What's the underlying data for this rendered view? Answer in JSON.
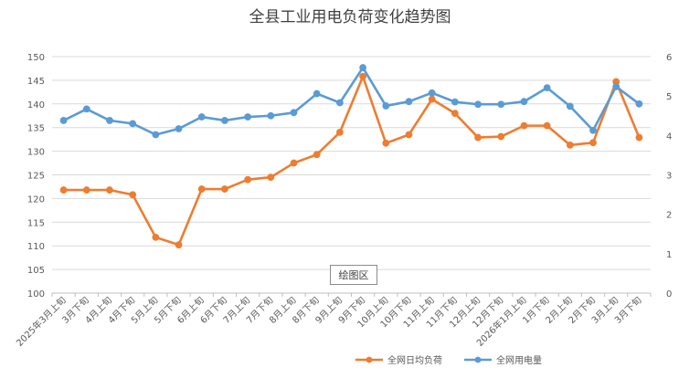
{
  "plot_area_label": "绘图区",
  "chart_data": {
    "type": "line",
    "title": "全县工业用电负荷变化趋势图",
    "categories": [
      "2025年3月上旬",
      "3月下旬",
      "4月上旬",
      "4月下旬",
      "5月上旬",
      "5月下旬",
      "6月上旬",
      "6月下旬",
      "7月上旬",
      "7月下旬",
      "8月上旬",
      "8月下旬",
      "9月上旬",
      "9月下旬",
      "10月上旬",
      "10月下旬",
      "11月上旬",
      "11月下旬",
      "12月上旬",
      "12月下旬",
      "2026年1月上旬",
      "1月下旬",
      "2月上旬",
      "2月下旬",
      "3月上旬",
      "3月下旬"
    ],
    "y_left": {
      "min": 100,
      "max": 150,
      "step": 5,
      "ticks": [
        "100",
        "105",
        "110",
        "115",
        "120",
        "125",
        "130",
        "135",
        "140",
        "145",
        "150"
      ]
    },
    "y_right": {
      "min": 0,
      "max": 6,
      "step": 1,
      "ticks": [
        "0",
        "1",
        "2",
        "3",
        "4",
        "5",
        "6"
      ]
    },
    "grid": true,
    "legend_position": "bottom-right",
    "series": [
      {
        "name": "全网日均负荷",
        "axis": "left",
        "color": "#ED7D31",
        "values": [
          121.8,
          121.8,
          121.8,
          120.8,
          111.8,
          110.2,
          122.0,
          122.0,
          124.0,
          124.5,
          127.5,
          129.3,
          134.0,
          145.8,
          131.7,
          133.5,
          141.0,
          138.0,
          132.9,
          133.1,
          135.4,
          135.4,
          131.3,
          131.8,
          144.7,
          132.9
        ]
      },
      {
        "name": "全网用电量",
        "axis": "right",
        "color": "#5B9BD5",
        "values": [
          4.38,
          4.67,
          4.38,
          4.3,
          4.02,
          4.17,
          4.47,
          4.38,
          4.47,
          4.5,
          4.58,
          5.06,
          4.83,
          5.72,
          4.75,
          4.86,
          5.08,
          4.85,
          4.79,
          4.79,
          4.86,
          5.21,
          4.74,
          4.13,
          5.24,
          4.8
        ]
      }
    ]
  }
}
